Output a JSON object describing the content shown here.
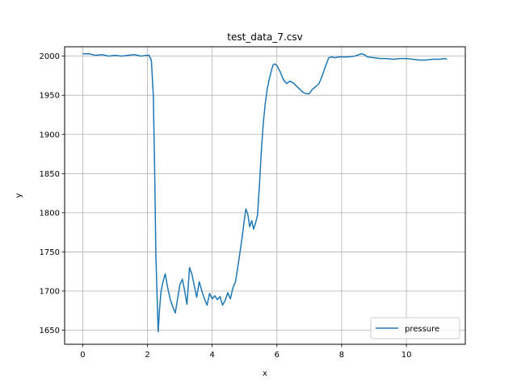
{
  "chart_data": {
    "type": "line",
    "title": "test_data_7.csv",
    "xlabel": "x",
    "ylabel": "y",
    "xlim": [
      -0.56,
      11.82
    ],
    "ylim": [
      1632,
      2012
    ],
    "x_ticks": [
      0,
      2,
      4,
      6,
      8,
      10
    ],
    "y_ticks": [
      1650,
      1700,
      1750,
      1800,
      1850,
      1900,
      1950,
      2000
    ],
    "grid": true,
    "legend_position": "lower-right",
    "series": [
      {
        "name": "pressure",
        "color": "#1f77b4",
        "x": [
          0.0,
          0.2,
          0.4,
          0.6,
          0.8,
          1.0,
          1.2,
          1.4,
          1.6,
          1.8,
          1.95,
          2.05,
          2.12,
          2.18,
          2.22,
          2.26,
          2.3,
          2.33,
          2.37,
          2.42,
          2.48,
          2.55,
          2.62,
          2.7,
          2.78,
          2.86,
          2.93,
          3.0,
          3.08,
          3.15,
          3.22,
          3.3,
          3.37,
          3.45,
          3.52,
          3.6,
          3.68,
          3.76,
          3.84,
          3.92,
          4.0,
          4.08,
          4.16,
          4.24,
          4.32,
          4.4,
          4.48,
          4.56,
          4.64,
          4.72,
          4.8,
          4.86,
          4.92,
          4.98,
          5.04,
          5.1,
          5.16,
          5.22,
          5.28,
          5.34,
          5.4,
          5.46,
          5.52,
          5.58,
          5.64,
          5.7,
          5.76,
          5.82,
          5.88,
          5.94,
          6.0,
          6.1,
          6.2,
          6.3,
          6.4,
          6.5,
          6.6,
          6.7,
          6.8,
          6.9,
          7.0,
          7.1,
          7.2,
          7.3,
          7.4,
          7.5,
          7.6,
          7.7,
          7.8,
          7.9,
          8.0,
          8.2,
          8.4,
          8.6,
          8.7,
          8.8,
          9.0,
          9.2,
          9.4,
          9.6,
          9.8,
          10.0,
          10.2,
          10.4,
          10.6,
          10.8,
          11.0,
          11.2,
          11.25
        ],
        "y": [
          2003,
          2003,
          2001,
          2002,
          2000,
          2001,
          2000,
          2001,
          2002,
          2000,
          2001,
          2001,
          1995,
          1950,
          1860,
          1745,
          1690,
          1648,
          1675,
          1700,
          1712,
          1722,
          1705,
          1690,
          1680,
          1672,
          1690,
          1708,
          1715,
          1700,
          1683,
          1730,
          1722,
          1706,
          1692,
          1712,
          1700,
          1690,
          1682,
          1697,
          1690,
          1694,
          1689,
          1693,
          1682,
          1688,
          1698,
          1690,
          1704,
          1712,
          1733,
          1750,
          1767,
          1787,
          1805,
          1798,
          1782,
          1790,
          1779,
          1787,
          1797,
          1836,
          1880,
          1915,
          1940,
          1958,
          1970,
          1980,
          1989,
          1990,
          1988,
          1980,
          1970,
          1965,
          1968,
          1966,
          1962,
          1958,
          1954,
          1952,
          1952,
          1958,
          1961,
          1965,
          1975,
          1987,
          1998,
          1999,
          1998,
          1999,
          1999,
          1999,
          2000,
          2003,
          2002,
          1999,
          1998,
          1997,
          1997,
          1996,
          1997,
          1997,
          1996,
          1995,
          1995,
          1996,
          1996,
          1997,
          1996
        ]
      }
    ]
  }
}
